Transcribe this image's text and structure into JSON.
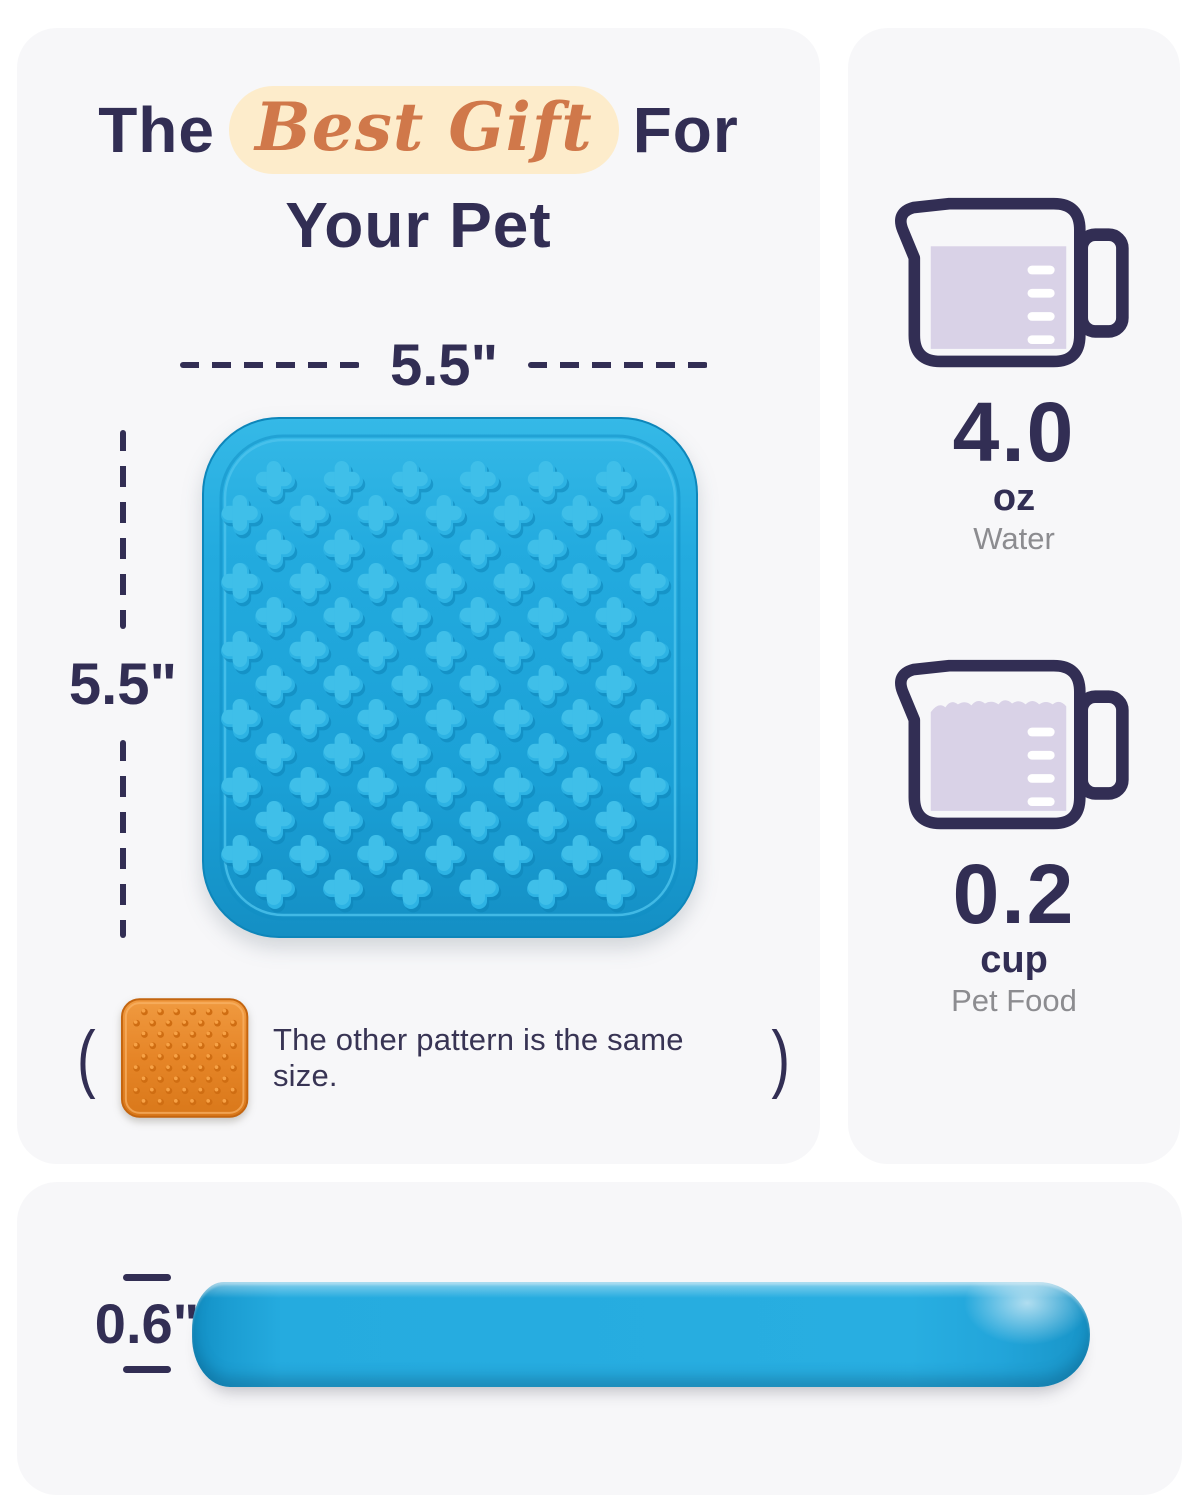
{
  "title": {
    "pre": "The",
    "highlight": "Best Gift",
    "post": "For",
    "line2": "Your Pet"
  },
  "mat": {
    "width_label": "5.5\"",
    "height_label": "5.5\"",
    "thickness_label": "0.6\""
  },
  "note": {
    "open_paren": "(",
    "text": "The other pattern is the same size.",
    "close_paren": ")"
  },
  "capacity": {
    "water": {
      "value": "4.0",
      "unit": "oz",
      "label": "Water"
    },
    "food": {
      "value": "0.2",
      "unit": "cup",
      "label": "Pet Food"
    }
  },
  "colors": {
    "navy": "#322e54",
    "gray_label": "#8c8c90",
    "script_orange": "#d0784a",
    "highlight_pill": "#fdeccb",
    "mat_blue": "#1ea6db",
    "mat_orange": "#e8872f",
    "cup_fill_lavender": "#d9d2e7",
    "card_background": "#f7f7f9"
  },
  "icons": {
    "water_cup": "measuring-cup-icon",
    "food_cup": "measuring-cup-icon",
    "blue_mat": "lick-mat-top-view",
    "orange_mat": "lick-mat-thumbnail",
    "side_mat": "lick-mat-side-view"
  }
}
